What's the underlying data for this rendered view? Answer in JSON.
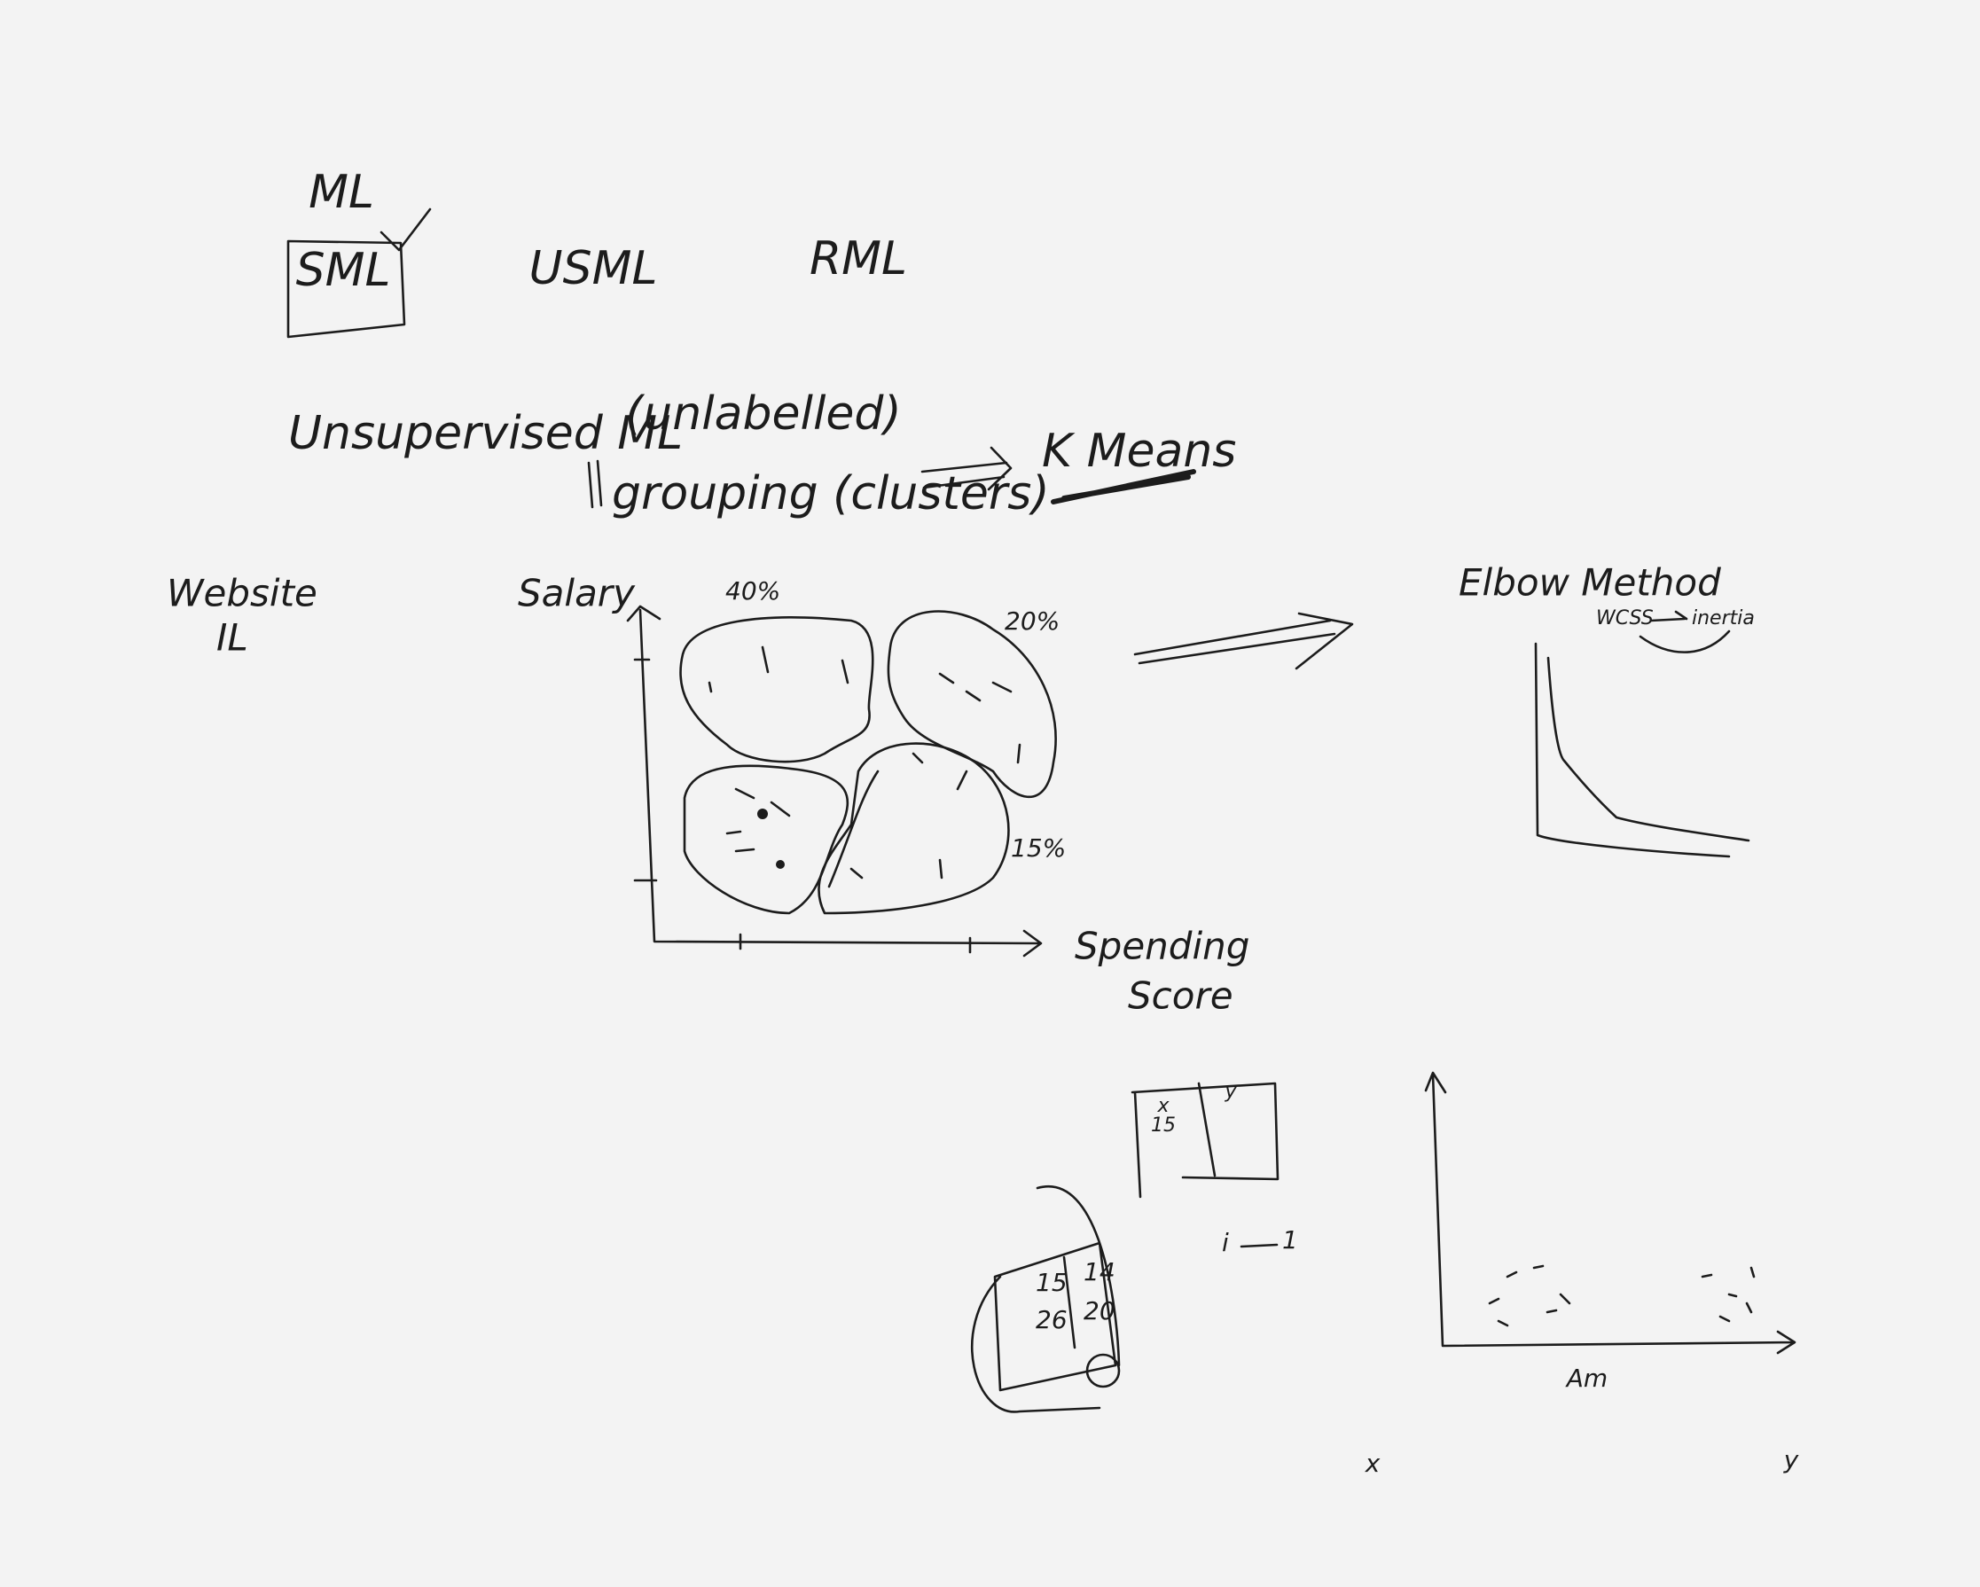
{
  "top": {
    "ml": "ML",
    "sml": "SML",
    "usml": "USML",
    "rml": "RML"
  },
  "notes": {
    "unsupervised": "Unsupervised ML",
    "unlabelled": "(unlabelled)",
    "grouping": "grouping (clusters)",
    "kmeans": "K Means",
    "website": "Website",
    "il": "IL"
  },
  "scatter": {
    "y_label": "Salary",
    "x_label_1": "Spending",
    "x_label_2": "Score",
    "c1": "40%",
    "c2": "20%",
    "c3": "15%"
  },
  "elbow": {
    "title": "Elbow Method",
    "wcss": "WCSS",
    "inertia": "inertia"
  },
  "table": {
    "col1": "x",
    "cell1": "15",
    "col2": "y",
    "i_note": "i",
    "i_value": "1"
  },
  "box": {
    "a": "15",
    "b": "14",
    "c": "26",
    "d": "20"
  },
  "bottom": {
    "x_axis": "Am",
    "x": "x",
    "y": "y"
  }
}
